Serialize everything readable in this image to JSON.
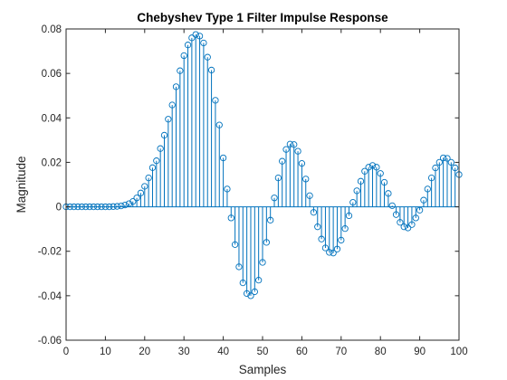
{
  "chart_data": {
    "type": "stem",
    "title": "Chebyshev Type 1 Filter Impulse Response",
    "xlabel": "Samples",
    "ylabel": "Magnitude",
    "xlim": [
      0,
      100
    ],
    "ylim": [
      -0.06,
      0.08
    ],
    "x_ticks": [
      0,
      10,
      20,
      30,
      40,
      50,
      60,
      70,
      80,
      90,
      100
    ],
    "x_tick_labels": [
      "0",
      "10",
      "20",
      "30",
      "40",
      "50",
      "60",
      "70",
      "80",
      "90",
      "100"
    ],
    "y_ticks": [
      -0.06,
      -0.04,
      -0.02,
      0,
      0.02,
      0.04,
      0.06,
      0.08
    ],
    "y_tick_labels": [
      "-0.06",
      "-0.04",
      "-0.02",
      "0",
      "0.02",
      "0.04",
      "0.06",
      "0.08"
    ],
    "grid": false,
    "marker": "circle",
    "colors": {
      "series": "#0072BD",
      "axes": "#262626",
      "background": "#FFFFFF"
    },
    "x": [
      0,
      1,
      2,
      3,
      4,
      5,
      6,
      7,
      8,
      9,
      10,
      11,
      12,
      13,
      14,
      15,
      16,
      17,
      18,
      19,
      20,
      21,
      22,
      23,
      24,
      25,
      26,
      27,
      28,
      29,
      30,
      31,
      32,
      33,
      34,
      35,
      36,
      37,
      38,
      39,
      40,
      41,
      42,
      43,
      44,
      45,
      46,
      47,
      48,
      49,
      50,
      51,
      52,
      53,
      54,
      55,
      56,
      57,
      58,
      59,
      60,
      61,
      62,
      63,
      64,
      65,
      66,
      67,
      68,
      69,
      70,
      71,
      72,
      73,
      74,
      75,
      76,
      77,
      78,
      79,
      80,
      81,
      82,
      83,
      84,
      85,
      86,
      87,
      88,
      89,
      90,
      91,
      92,
      93,
      94,
      95,
      96,
      97,
      98,
      99,
      100
    ],
    "values": [
      0.0,
      0.0,
      0.0,
      0.0,
      0.0,
      0.0,
      0.0,
      0.0,
      0.0,
      0.0,
      0.0,
      0.0,
      0.0001,
      0.0002,
      0.0004,
      0.0008,
      0.0014,
      0.0024,
      0.004,
      0.0062,
      0.0092,
      0.013,
      0.0176,
      0.0207,
      0.0262,
      0.0322,
      0.0394,
      0.0458,
      0.054,
      0.0612,
      0.068,
      0.0728,
      0.076,
      0.0775,
      0.0768,
      0.0737,
      0.0673,
      0.0615,
      0.0479,
      0.0368,
      0.022,
      0.008,
      -0.005,
      -0.017,
      -0.027,
      -0.0342,
      -0.039,
      -0.04,
      -0.0382,
      -0.033,
      -0.025,
      -0.016,
      -0.006,
      0.004,
      0.013,
      0.0205,
      0.0258,
      0.0282,
      0.028,
      0.025,
      0.0195,
      0.0125,
      0.005,
      -0.0025,
      -0.009,
      -0.0145,
      -0.0185,
      -0.0205,
      -0.0208,
      -0.019,
      -0.015,
      -0.0098,
      -0.004,
      0.002,
      0.0072,
      0.0115,
      0.016,
      0.0178,
      0.0186,
      0.0178,
      0.015,
      0.011,
      0.006,
      0.0005,
      -0.0035,
      -0.007,
      -0.009,
      -0.0095,
      -0.008,
      -0.005,
      -0.0015,
      0.003,
      0.008,
      0.013,
      0.0175,
      0.02,
      0.022,
      0.0218,
      0.02,
      0.0175,
      0.0145
    ]
  }
}
